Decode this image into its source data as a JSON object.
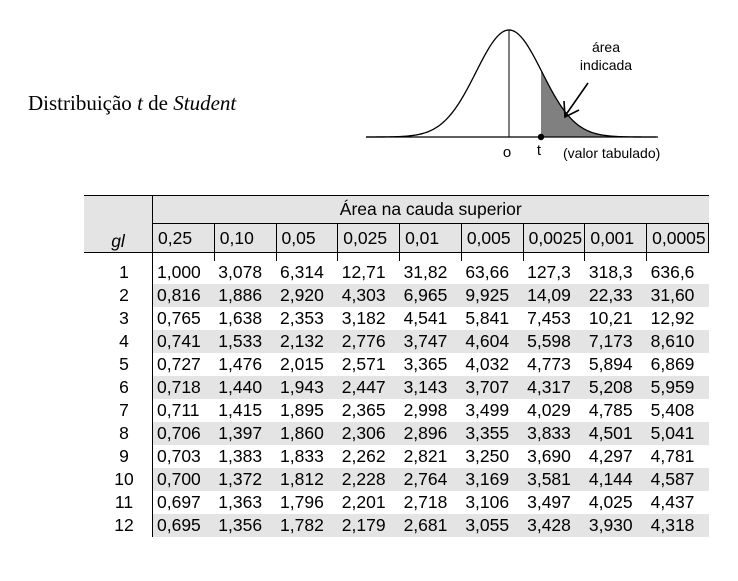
{
  "title": {
    "prefix": "Distribuição ",
    "t": "t",
    "middle": " de ",
    "student": "Student"
  },
  "figure": {
    "area_label_line1": "área",
    "area_label_line2": "indicada",
    "zero_label": "o",
    "t_label": "t",
    "tabulated_label": "(valor tabulado)",
    "shade_color": "#808080"
  },
  "table": {
    "gl_header": "gl",
    "area_header": "Área na cauda superior",
    "columns": [
      "0,25",
      "0,10",
      "0,05",
      "0,025",
      "0,01",
      "0,005",
      "0,0025",
      "0,001",
      "0,0005"
    ],
    "rows": [
      {
        "gl": "1",
        "values": [
          "1,000",
          "3,078",
          "6,314",
          "12,71",
          "31,82",
          "63,66",
          "127,3",
          "318,3",
          "636,6"
        ]
      },
      {
        "gl": "2",
        "values": [
          "0,816",
          "1,886",
          "2,920",
          "4,303",
          "6,965",
          "9,925",
          "14,09",
          "22,33",
          "31,60"
        ]
      },
      {
        "gl": "3",
        "values": [
          "0,765",
          "1,638",
          "2,353",
          "3,182",
          "4,541",
          "5,841",
          "7,453",
          "10,21",
          "12,92"
        ]
      },
      {
        "gl": "4",
        "values": [
          "0,741",
          "1,533",
          "2,132",
          "2,776",
          "3,747",
          "4,604",
          "5,598",
          "7,173",
          "8,610"
        ]
      },
      {
        "gl": "5",
        "values": [
          "0,727",
          "1,476",
          "2,015",
          "2,571",
          "3,365",
          "4,032",
          "4,773",
          "5,894",
          "6,869"
        ]
      },
      {
        "gl": "6",
        "values": [
          "0,718",
          "1,440",
          "1,943",
          "2,447",
          "3,143",
          "3,707",
          "4,317",
          "5,208",
          "5,959"
        ]
      },
      {
        "gl": "7",
        "values": [
          "0,711",
          "1,415",
          "1,895",
          "2,365",
          "2,998",
          "3,499",
          "4,029",
          "4,785",
          "5,408"
        ]
      },
      {
        "gl": "8",
        "values": [
          "0,706",
          "1,397",
          "1,860",
          "2,306",
          "2,896",
          "3,355",
          "3,833",
          "4,501",
          "5,041"
        ]
      },
      {
        "gl": "9",
        "values": [
          "0,703",
          "1,383",
          "1,833",
          "2,262",
          "2,821",
          "3,250",
          "3,690",
          "4,297",
          "4,781"
        ]
      },
      {
        "gl": "10",
        "values": [
          "0,700",
          "1,372",
          "1,812",
          "2,228",
          "2,764",
          "3,169",
          "3,581",
          "4,144",
          "4,587"
        ]
      },
      {
        "gl": "11",
        "values": [
          "0,697",
          "1,363",
          "1,796",
          "2,201",
          "2,718",
          "3,106",
          "3,497",
          "4,025",
          "4,437"
        ]
      },
      {
        "gl": "12",
        "values": [
          "0,695",
          "1,356",
          "1,782",
          "2,179",
          "2,681",
          "3,055",
          "3,428",
          "3,930",
          "4,318"
        ]
      }
    ]
  }
}
